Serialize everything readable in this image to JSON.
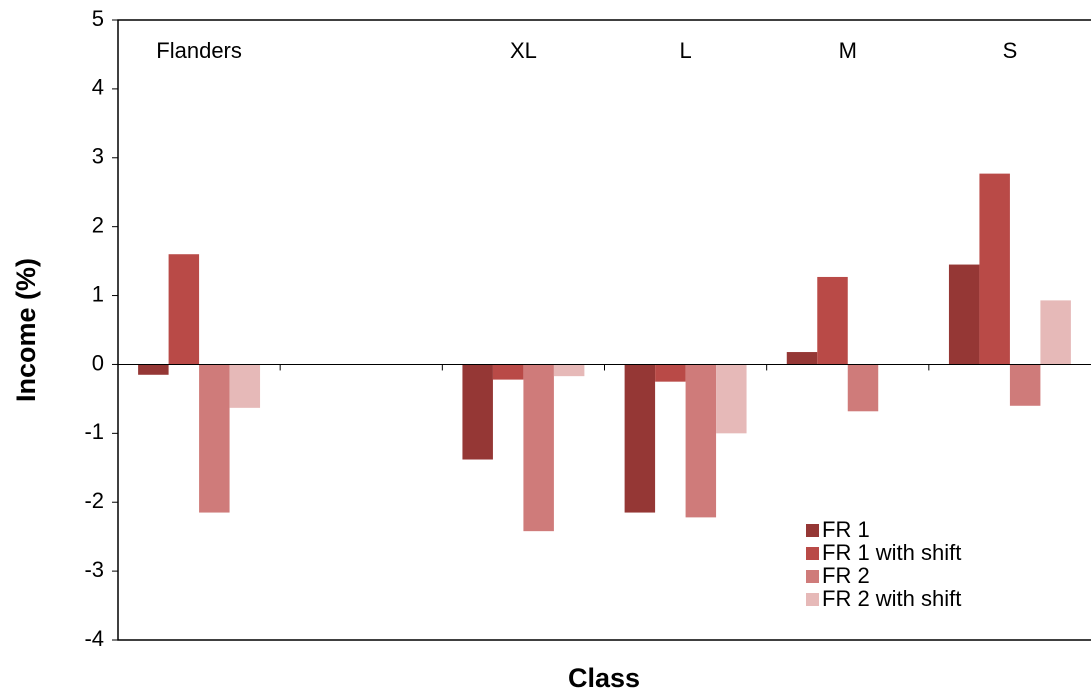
{
  "chart_data": {
    "type": "bar",
    "x_label": "Class",
    "y_label": "Income (%)",
    "categories": [
      "Flanders",
      null,
      "XL",
      "L",
      "M",
      "S"
    ],
    "series": [
      {
        "name": "FR 1",
        "color": "#953735",
        "values": [
          -0.15,
          null,
          -1.38,
          -2.15,
          0.18,
          1.45
        ]
      },
      {
        "name": "FR 1 with shift",
        "color": "#b94a47",
        "values": [
          1.6,
          null,
          -0.22,
          -0.25,
          1.27,
          2.77
        ]
      },
      {
        "name": "FR 2",
        "color": "#cf7b7a",
        "values": [
          -2.15,
          null,
          -2.42,
          -2.22,
          -0.68,
          -0.6
        ]
      },
      {
        "name": "FR 2 with shift",
        "color": "#e6b9b8",
        "values": [
          -0.63,
          null,
          -0.17,
          -1.0,
          null,
          0.93
        ]
      }
    ],
    "ylim": [
      -4,
      5
    ],
    "yticks": [
      -4,
      -3,
      -2,
      -1,
      0,
      1,
      2,
      3,
      4,
      5
    ],
    "legend": "lower right"
  }
}
